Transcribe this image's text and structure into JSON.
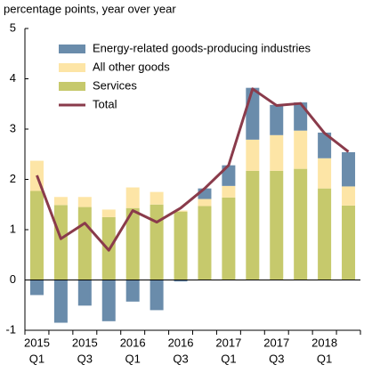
{
  "chart_data": {
    "type": "stacked-bar-line",
    "y_label": "percentage points, year over year",
    "category_years": [
      "2015",
      null,
      "2015",
      null,
      "2016",
      null,
      "2016",
      null,
      "2017",
      null,
      "2017",
      null,
      "2018",
      null
    ],
    "category_quarters": [
      "Q1",
      null,
      "Q3",
      null,
      "Q1",
      null,
      "Q3",
      null,
      "Q1",
      null,
      "Q3",
      null,
      "Q1",
      null
    ],
    "series": [
      {
        "name": "Energy-related goods-producing industries",
        "type": "bar",
        "color": "#6a8cab",
        "values": [
          -0.3,
          -0.85,
          -0.51,
          -0.82,
          -0.43,
          -0.6,
          -0.03,
          0.21,
          0.41,
          1.03,
          0.6,
          0.56,
          0.51,
          0.68
        ]
      },
      {
        "name": "All other goods",
        "type": "bar",
        "color": "#fde5a6",
        "values": [
          0.6,
          0.16,
          0.2,
          0.15,
          0.41,
          0.25,
          0.02,
          0.14,
          0.23,
          0.62,
          0.71,
          0.76,
          0.6,
          0.38
        ]
      },
      {
        "name": "Services",
        "type": "bar",
        "color": "#c6c96c",
        "values": [
          1.77,
          1.49,
          1.45,
          1.25,
          1.43,
          1.5,
          1.36,
          1.47,
          1.64,
          2.17,
          2.17,
          2.21,
          1.82,
          1.48
        ]
      },
      {
        "name": "Total",
        "type": "line",
        "color": "#8a3b4b",
        "values": [
          2.08,
          0.82,
          1.13,
          0.59,
          1.38,
          1.15,
          1.43,
          1.82,
          2.28,
          3.8,
          3.47,
          3.51,
          2.92,
          2.55
        ]
      }
    ],
    "ylim": [
      -1,
      5
    ],
    "yticks": [
      -1,
      0,
      1,
      2,
      3,
      4,
      5
    ],
    "grid": false,
    "legend": "top-left"
  }
}
